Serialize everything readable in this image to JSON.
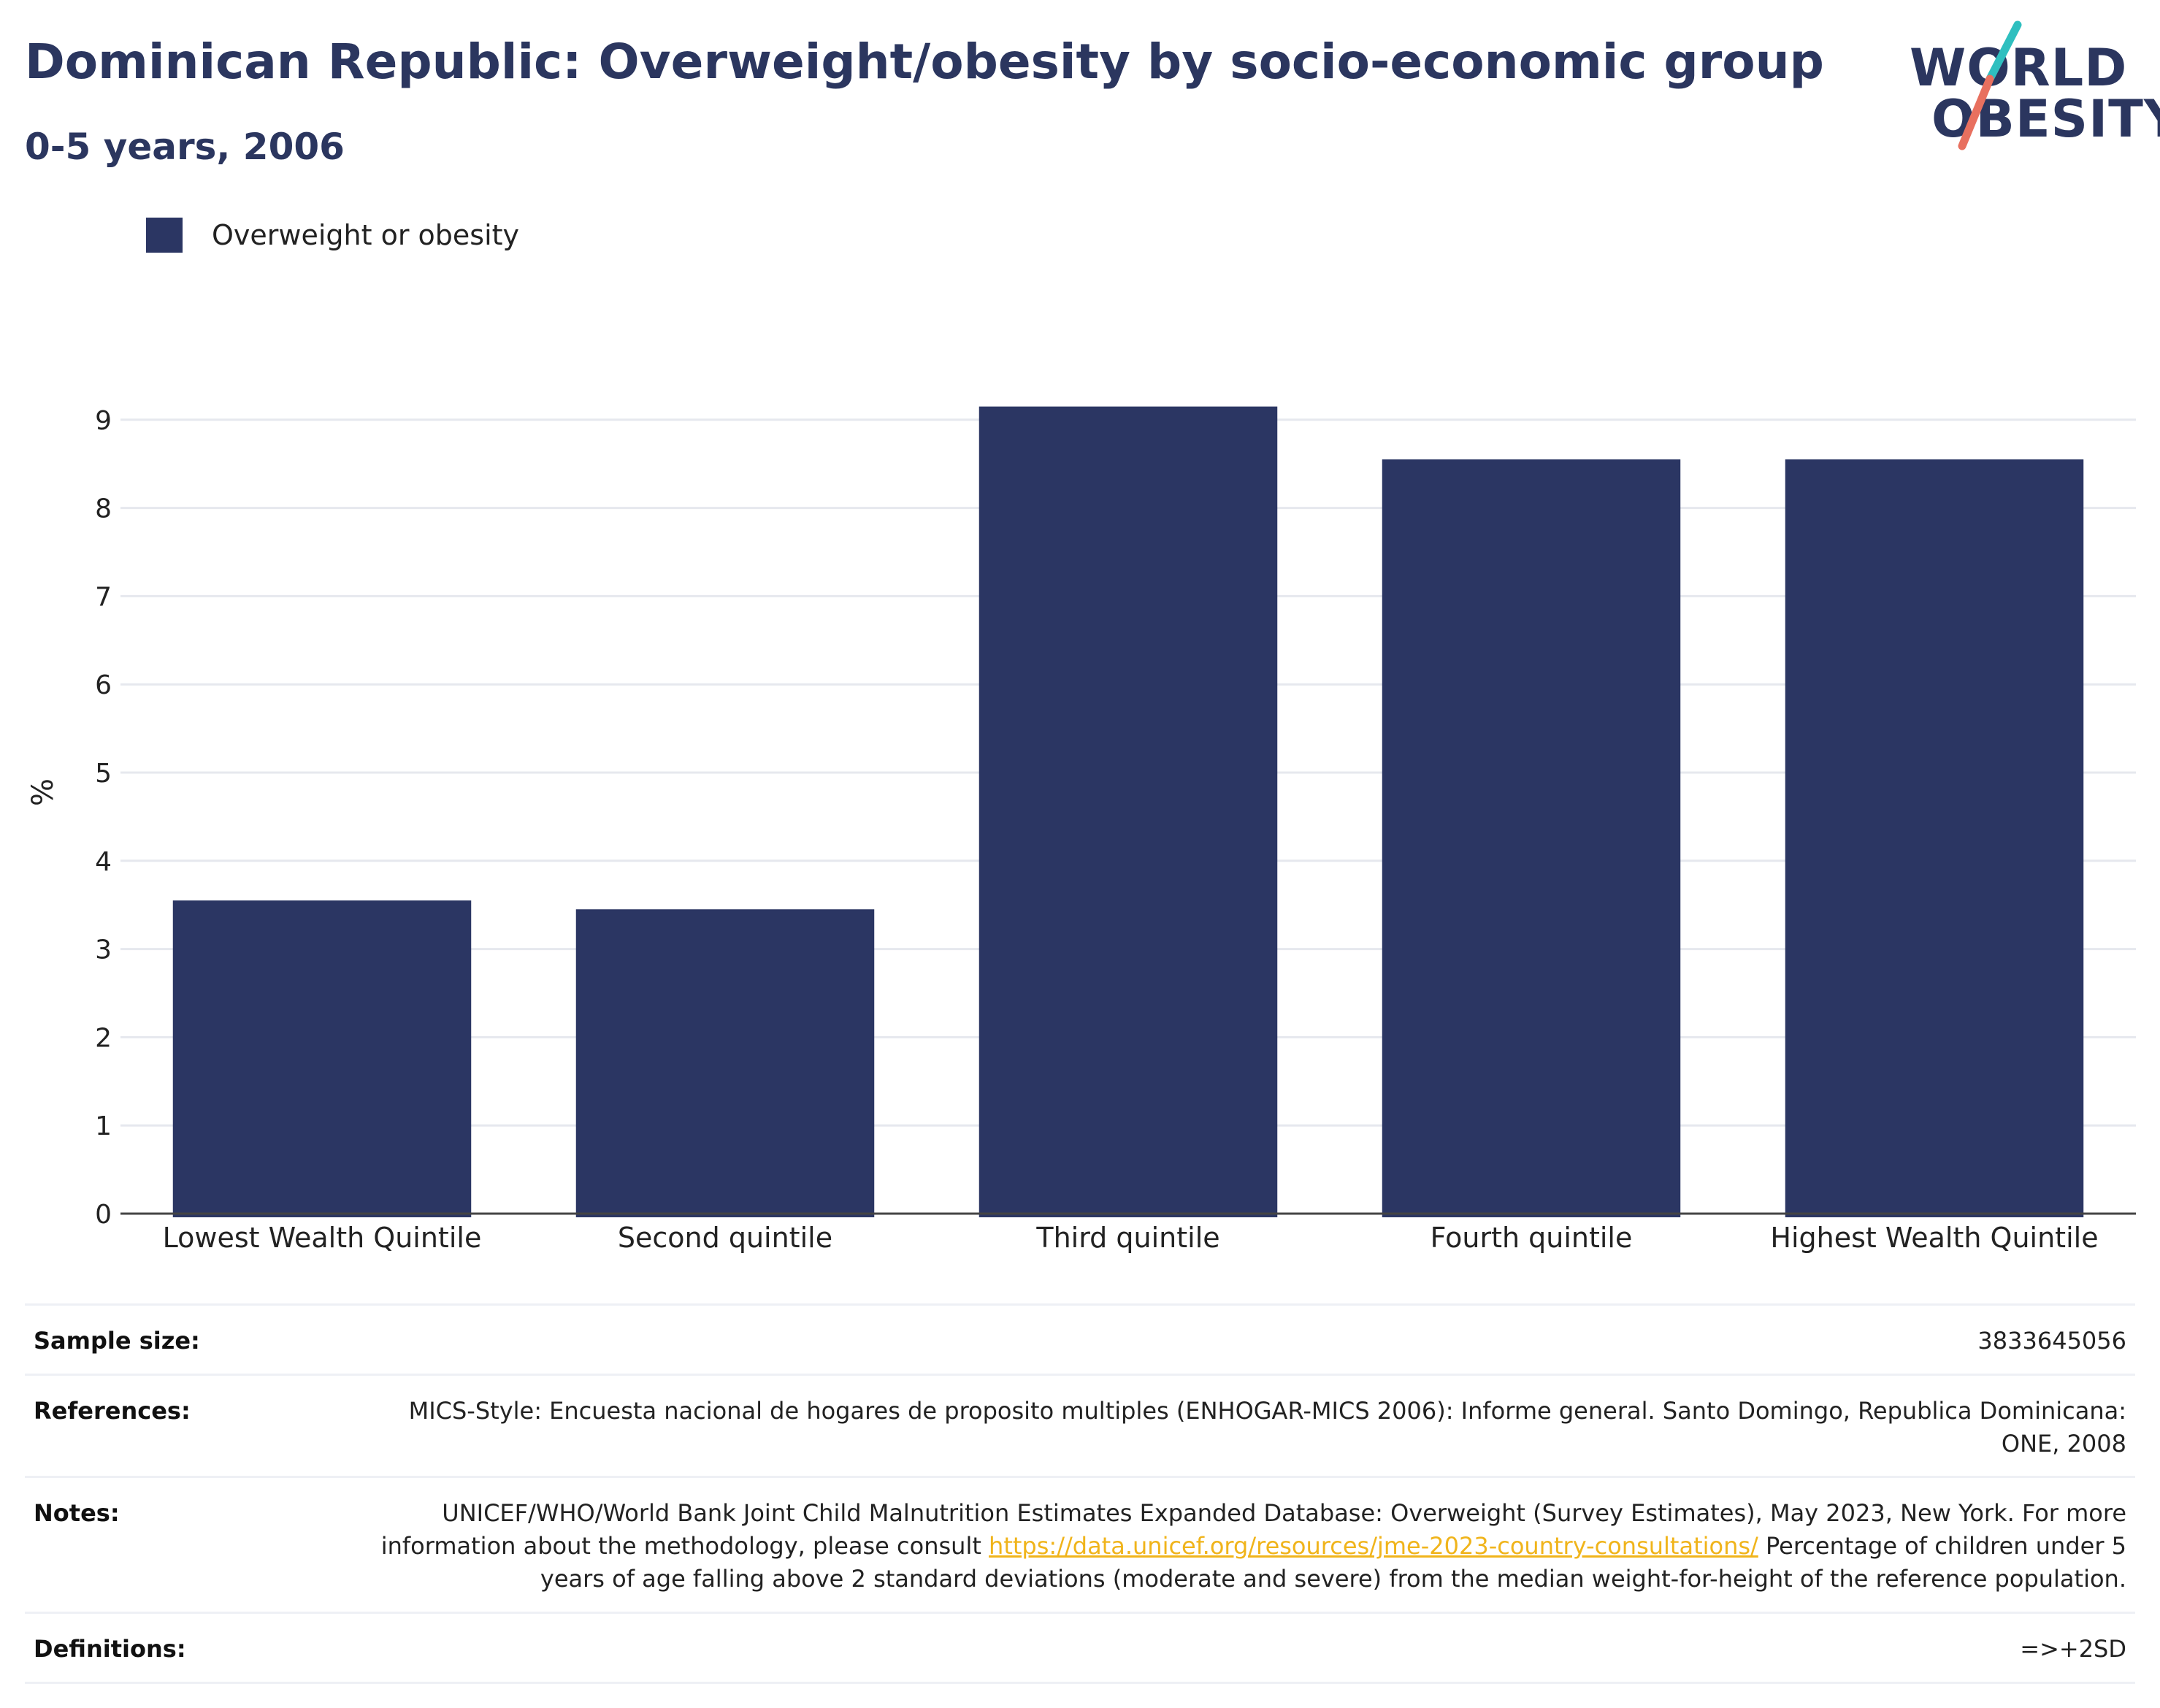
{
  "header": {
    "title": "Dominican Republic: Overweight/obesity by socio-economic group",
    "subtitle": "0-5 years, 2006"
  },
  "logo": {
    "line1": "WORLD",
    "line2": "OBESITY",
    "slash_colors": [
      "#2fbfbf",
      "#e8705f"
    ]
  },
  "colors": {
    "bar": "#2b3663",
    "title": "#2b365f",
    "grid": "#e6e8ee",
    "link": "#f0b41b"
  },
  "chart_data": {
    "type": "bar",
    "title": "Dominican Republic: Overweight/obesity by socio-economic group",
    "subtitle": "0-5 years, 2006",
    "categories": [
      "Lowest Wealth Quintile",
      "Second quintile",
      "Third quintile",
      "Fourth quintile",
      "Highest Wealth Quintile"
    ],
    "series": [
      {
        "name": "Overweight or obesity",
        "values": [
          3.55,
          3.45,
          9.15,
          8.55,
          8.55
        ]
      }
    ],
    "xlabel": "",
    "ylabel": "%",
    "ylim": [
      0,
      9.5
    ],
    "yticks": [
      0,
      1,
      2,
      3,
      4,
      5,
      6,
      7,
      8,
      9
    ],
    "grid": true,
    "legend": "top-left"
  },
  "info": {
    "sample_size": {
      "label": "Sample size:",
      "value": "3833645056"
    },
    "references": {
      "label": "References:",
      "value": "MICS-Style: Encuesta nacional de hogares de proposito multiples (ENHOGAR-MICS 2006): Informe general. Santo Domingo, Republica Dominicana: ONE, 2008"
    },
    "notes": {
      "label": "Notes:",
      "text_before": "UNICEF/WHO/World Bank Joint Child Malnutrition Estimates Expanded Database: Overweight (Survey Estimates), May 2023, New York. For more information about the methodology, please consult ",
      "link": "https://data.unicef.org/resources/jme-2023-country-consultations/",
      "text_after": " Percentage of children under 5 years of age falling above 2 standard deviations (moderate and severe) from the median weight-for-height of the reference population."
    },
    "definitions": {
      "label": "Definitions:",
      "value": "=>+2SD"
    }
  }
}
